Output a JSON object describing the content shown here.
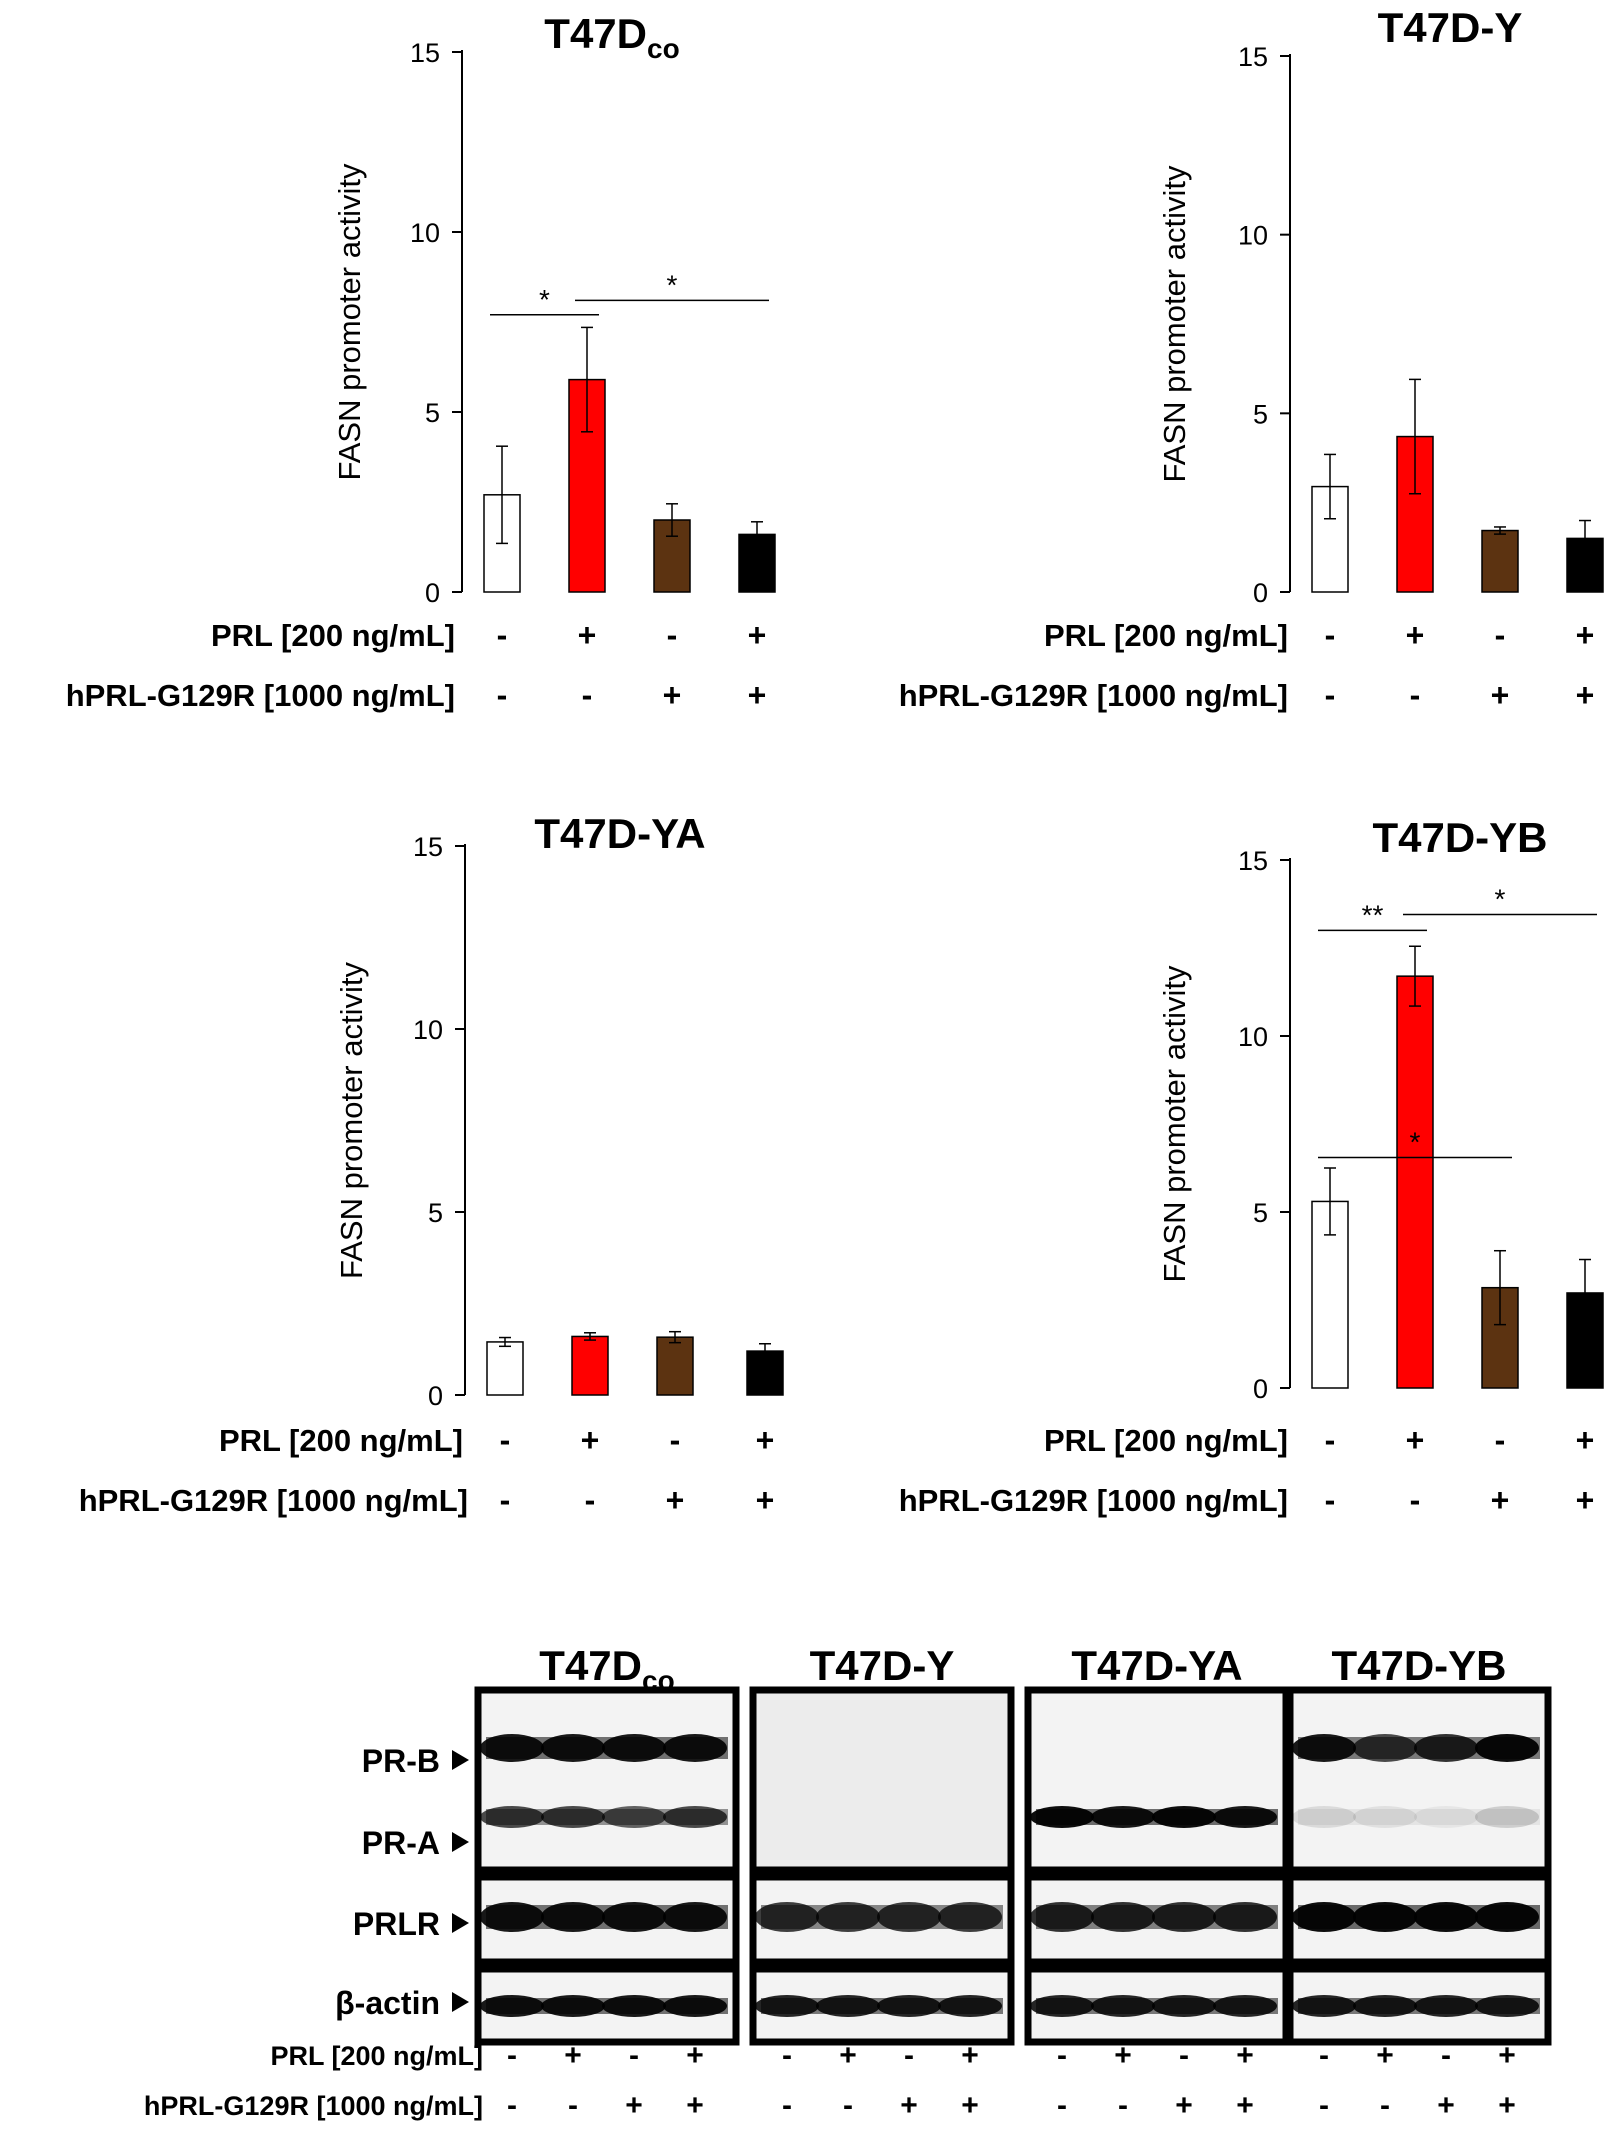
{
  "chart_data": [
    {
      "type": "bar",
      "title": "T47D",
      "title_subscript": "co",
      "ylabel": "FASN promoter activity",
      "ylim": [
        0,
        15
      ],
      "yticks": [
        "0",
        "5",
        "10",
        "15"
      ],
      "values": [
        2.7,
        5.9,
        2.0,
        1.6
      ],
      "errors": [
        1.35,
        1.45,
        0.45,
        0.35
      ],
      "colors": [
        "#ffffff",
        "#ff0000",
        "#5c3311",
        "#000000"
      ],
      "conditions": [
        {
          "label": "PRL [200 ng/mL]",
          "signs": [
            "-",
            "+",
            "-",
            "+"
          ]
        },
        {
          "label": "hPRL-G129R [1000 ng/mL]",
          "signs": [
            "-",
            "-",
            "+",
            "+"
          ]
        }
      ],
      "significance": [
        {
          "from": 0,
          "to": 1,
          "y": 7.7,
          "label": "*"
        },
        {
          "from": 1,
          "to": 3,
          "y": 8.1,
          "label": "*"
        }
      ]
    },
    {
      "type": "bar",
      "title": "T47D-Y",
      "title_subscript": "",
      "ylabel": "FASN promoter activity",
      "ylim": [
        0,
        15
      ],
      "yticks": [
        "0",
        "5",
        "10",
        "15"
      ],
      "values": [
        2.95,
        4.35,
        1.72,
        1.5
      ],
      "errors": [
        0.9,
        1.6,
        0.1,
        0.5
      ],
      "colors": [
        "#ffffff",
        "#ff0000",
        "#5c3311",
        "#000000"
      ],
      "conditions": [
        {
          "label": "PRL [200 ng/mL]",
          "signs": [
            "-",
            "+",
            "-",
            "+"
          ]
        },
        {
          "label": "hPRL-G129R [1000 ng/mL]",
          "signs": [
            "-",
            "-",
            "+",
            "+"
          ]
        }
      ],
      "significance": []
    },
    {
      "type": "bar",
      "title": "T47D-YA",
      "title_subscript": "",
      "ylabel": "FASN promoter activity",
      "ylim": [
        0,
        15
      ],
      "yticks": [
        "0",
        "5",
        "10",
        "15"
      ],
      "values": [
        1.45,
        1.6,
        1.58,
        1.2
      ],
      "errors": [
        0.12,
        0.1,
        0.15,
        0.2
      ],
      "colors": [
        "#ffffff",
        "#ff0000",
        "#5c3311",
        "#000000"
      ],
      "conditions": [
        {
          "label": "PRL [200 ng/mL]",
          "signs": [
            "-",
            "+",
            "-",
            "+"
          ]
        },
        {
          "label": "hPRL-G129R [1000 ng/mL]",
          "signs": [
            "-",
            "-",
            "+",
            "+"
          ]
        }
      ],
      "significance": []
    },
    {
      "type": "bar",
      "title": "T47D-YB",
      "title_subscript": "",
      "ylabel": "FASN promoter activity",
      "ylim": [
        0,
        15
      ],
      "yticks": [
        "0",
        "5",
        "10",
        "15"
      ],
      "values": [
        5.3,
        11.7,
        2.85,
        2.7
      ],
      "errors": [
        0.95,
        0.85,
        1.05,
        0.95
      ],
      "colors": [
        "#ffffff",
        "#ff0000",
        "#5c3311",
        "#000000"
      ],
      "conditions": [
        {
          "label": "PRL [200 ng/mL]",
          "signs": [
            "-",
            "+",
            "-",
            "+"
          ]
        },
        {
          "label": "hPRL-G129R [1000 ng/mL]",
          "signs": [
            "-",
            "-",
            "+",
            "+"
          ]
        }
      ],
      "significance": [
        {
          "from": 0,
          "to": 1,
          "y": 13.0,
          "label": "**"
        },
        {
          "from": 1,
          "to": 3,
          "y": 13.45,
          "label": "*"
        },
        {
          "from": 0,
          "to": 2,
          "y": 6.55,
          "label": "*"
        }
      ]
    }
  ],
  "western_blot": {
    "panels": [
      {
        "title": "T47D",
        "title_subscript": "co",
        "bands": {
          "PR-B": [
            0.9,
            0.9,
            0.9,
            0.9
          ],
          "PR-A": [
            0.7,
            0.7,
            0.6,
            0.7
          ],
          "PRLR": [
            0.9,
            0.9,
            0.9,
            0.9
          ],
          "β-actin": [
            0.9,
            0.9,
            0.9,
            0.9
          ]
        }
      },
      {
        "title": "T47D-Y",
        "title_subscript": "",
        "bands": {
          "PR-B": [
            0,
            0,
            0,
            0
          ],
          "PR-A": [
            0,
            0,
            0,
            0
          ],
          "PRLR": [
            0.75,
            0.75,
            0.75,
            0.75
          ],
          "β-actin": [
            0.85,
            0.85,
            0.85,
            0.85
          ]
        }
      },
      {
        "title": "T47D-YA",
        "title_subscript": "",
        "bands": {
          "PR-B": [
            0,
            0,
            0,
            0
          ],
          "PR-A": [
            0.95,
            0.9,
            0.95,
            0.9
          ],
          "PRLR": [
            0.8,
            0.8,
            0.8,
            0.8
          ],
          "β-actin": [
            0.85,
            0.85,
            0.85,
            0.85
          ]
        }
      },
      {
        "title": "T47D-YB",
        "title_subscript": "",
        "bands": {
          "PR-B": [
            0.9,
            0.7,
            0.8,
            0.95
          ],
          "PR-A": [
            0.1,
            0.08,
            0.05,
            0.15
          ],
          "PRLR": [
            0.95,
            0.95,
            0.95,
            0.95
          ],
          "β-actin": [
            0.85,
            0.85,
            0.85,
            0.85
          ]
        }
      }
    ],
    "proteins": [
      "PR-B",
      "PR-A",
      "PRLR",
      "β-actin"
    ],
    "conditions": [
      {
        "label": "PRL [200 ng/mL]",
        "signs": [
          "-",
          "+",
          "-",
          "+"
        ]
      },
      {
        "label": "hPRL-G129R [1000 ng/mL]",
        "signs": [
          "-",
          "-",
          "+",
          "+"
        ]
      }
    ]
  }
}
